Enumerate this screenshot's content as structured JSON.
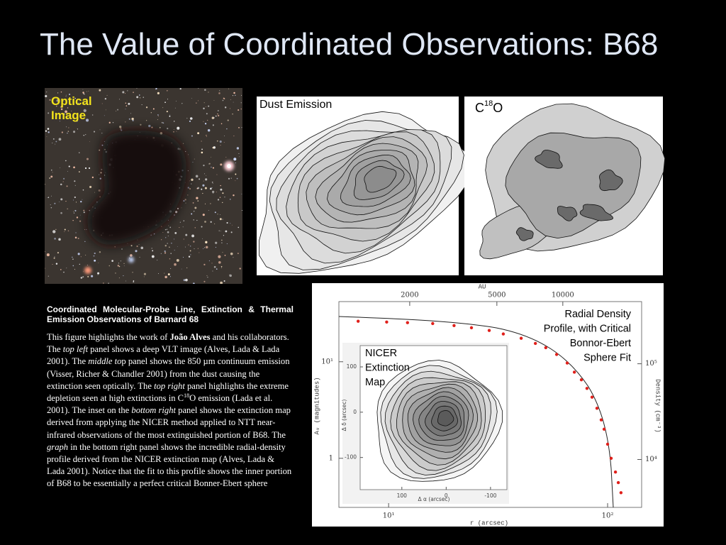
{
  "title": "The Value of Coordinated Observations: B68",
  "images": {
    "optical": {
      "label": [
        "Optical",
        "Image"
      ]
    },
    "dust": {
      "label": "Dust Emission"
    },
    "c18o": {
      "label": [
        {
          "text": "C"
        },
        {
          "text": "18",
          "style": "sup"
        },
        {
          "text": "O"
        }
      ]
    }
  },
  "caption": {
    "heading": "Coordinated Molecular-Probe Line, Extinction & Thermal Emission Observations of Barnard 68",
    "body": [
      {
        "text": "This figure highlights the work of "
      },
      {
        "text": "João Alves",
        "style": "bold"
      },
      {
        "text": " and his collaborators.  The "
      },
      {
        "text": "top left",
        "style": "italic"
      },
      {
        "text": " panel shows a deep VLT image (Alves, Lada & Lada 2001).  The "
      },
      {
        "text": "middle to",
        "style": "italic"
      },
      {
        "text": "p panel shows the 850 µm continuum emission (Visser, Richer & Chandler 2001) from the dust causing the extinction seen optically.  The "
      },
      {
        "text": "top right",
        "style": "italic"
      },
      {
        "text": " panel highlights the extreme depletion seen at high extinctions in C"
      },
      {
        "text": "18",
        "style": "sup"
      },
      {
        "text": "O emission (Lada et al. 2001).  The inset on the "
      },
      {
        "text": "bottom right",
        "style": "italic"
      },
      {
        "text": " panel shows the extinction map derived from applying the NICER method applied to NTT near-infrared observations of the most extinguished portion of B68.  The "
      },
      {
        "text": "graph",
        "style": "italic"
      },
      {
        "text": " in the bottom right panel shows the incredible radial-density profile derived from the NICER extinction map (Alves, Lada & Lada 2001).  Notice that the fit to this profile shows the inner portion of B68 to be essentially a perfect critical Bonner-Ebert sphere"
      }
    ]
  },
  "chart_data": {
    "type": "scatter",
    "log_x": true,
    "log_y": true,
    "color": "#e0201b",
    "x": [
      7.26,
      9.8,
      12.2,
      15.9,
      19.9,
      23.9,
      28.8,
      33.4,
      40.3,
      46.8,
      52.2,
      58.5,
      65.4,
      70.5,
      75.9,
      80.5,
      84.9,
      89.4,
      93.5,
      96.4,
      100,
      103.8,
      108.6,
      111.9,
      115.1
    ],
    "values": [
      26.3,
      25.8,
      25.4,
      24.9,
      23.7,
      22.5,
      21.1,
      19.4,
      17.5,
      15.5,
      14.0,
      11.9,
      9.7,
      7.8,
      6.5,
      5.3,
      4.3,
      3.3,
      2.5,
      2.0,
      1.4,
      1.0,
      0.72,
      0.56,
      0.44
    ],
    "xlim": [
      5.93,
      143
    ],
    "ylim": [
      0.31,
      42
    ],
    "xticks": [
      {
        "value": 10,
        "label": "10¹"
      },
      {
        "value": 100,
        "label": "10²"
      }
    ],
    "yticks": [
      1,
      {
        "value": 10,
        "label": "10¹"
      }
    ],
    "xlabel": "r (arcsec)",
    "ylabel": "Aᵥ (magnitudes)",
    "x2label": "AU",
    "x2lim": [
      950,
      22900
    ],
    "x2ticks": [
      2000,
      5000,
      10000
    ],
    "y2label": "Density (cm⁻³)",
    "y2lim": [
      3160,
      446000
    ],
    "y2ticks": [
      {
        "value": 10000,
        "label": "10⁴"
      },
      {
        "value": 100000,
        "label": "10⁵"
      }
    ],
    "annotation": [
      "Radial Density",
      "Profile, with Critical",
      "Bonnor-Ebert",
      "Sphere Fit"
    ],
    "inset": {
      "label": [
        "NICER",
        "Extinction",
        "Map"
      ],
      "xlabel": "Δ α (arcsec)",
      "ylabel": "Δ δ (arcsec)",
      "xlim": [
        194,
        -137
      ],
      "ylim": [
        -171,
        147
      ],
      "xticks": [
        100,
        0,
        -100
      ],
      "yticks": [
        100,
        0,
        -100
      ]
    }
  }
}
